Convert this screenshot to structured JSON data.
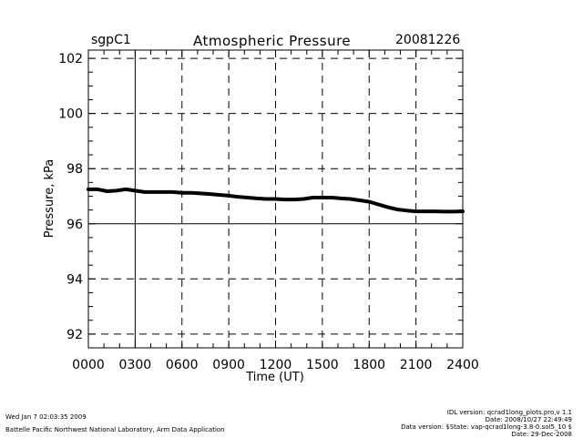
{
  "header": {
    "site": "sgpC1",
    "title": "Atmospheric Pressure",
    "date": "20081226"
  },
  "footer": {
    "timestamp": "Wed Jan  7 02:03:35 2009",
    "lab": "Battelle Pacific Northwest National Laboratory, Arm Data Application",
    "idl_lines": [
      "IDL version: qcrad1long_plots.pro,v 1.1",
      "Date: 2008/10/27 22:49:49",
      "Data version: $State: vap-qcrad1long-3.8-0.sol5_10 $",
      "Date: 29-Dec-2008"
    ]
  },
  "chart_data": {
    "type": "line",
    "title": "Atmospheric Pressure",
    "xlabel": "Time (UT)",
    "ylabel": "Pressure, kPa",
    "xlim": [
      0,
      2400
    ],
    "ylim": [
      91.5,
      102.3
    ],
    "x_ticks": [
      0,
      300,
      600,
      900,
      1200,
      1500,
      1800,
      2100,
      2400
    ],
    "x_tick_labels": [
      "0000",
      "0300",
      "0600",
      "0900",
      "1200",
      "1500",
      "1800",
      "2100",
      "2400"
    ],
    "y_ticks": [
      92,
      94,
      96,
      98,
      100,
      102
    ],
    "y_tick_labels": [
      "92",
      "94",
      "96",
      "98",
      "100",
      "102"
    ],
    "grid": true,
    "series": [
      {
        "color": "#000000",
        "x": [
          0,
          60,
          120,
          180,
          240,
          300,
          360,
          420,
          480,
          540,
          600,
          660,
          720,
          780,
          840,
          900,
          960,
          1020,
          1080,
          1140,
          1200,
          1260,
          1320,
          1380,
          1440,
          1500,
          1560,
          1620,
          1680,
          1740,
          1800,
          1860,
          1920,
          1980,
          2040,
          2100,
          2160,
          2220,
          2280,
          2340,
          2400
        ],
        "y": [
          97.25,
          97.25,
          97.18,
          97.2,
          97.25,
          97.2,
          97.15,
          97.15,
          97.15,
          97.15,
          97.12,
          97.12,
          97.1,
          97.08,
          97.05,
          97.02,
          96.98,
          96.95,
          96.92,
          96.9,
          96.9,
          96.88,
          96.88,
          96.9,
          96.95,
          96.95,
          96.95,
          96.92,
          96.9,
          96.85,
          96.8,
          96.7,
          96.6,
          96.52,
          96.48,
          96.45,
          96.45,
          96.45,
          96.44,
          96.44,
          96.45
        ]
      }
    ]
  }
}
